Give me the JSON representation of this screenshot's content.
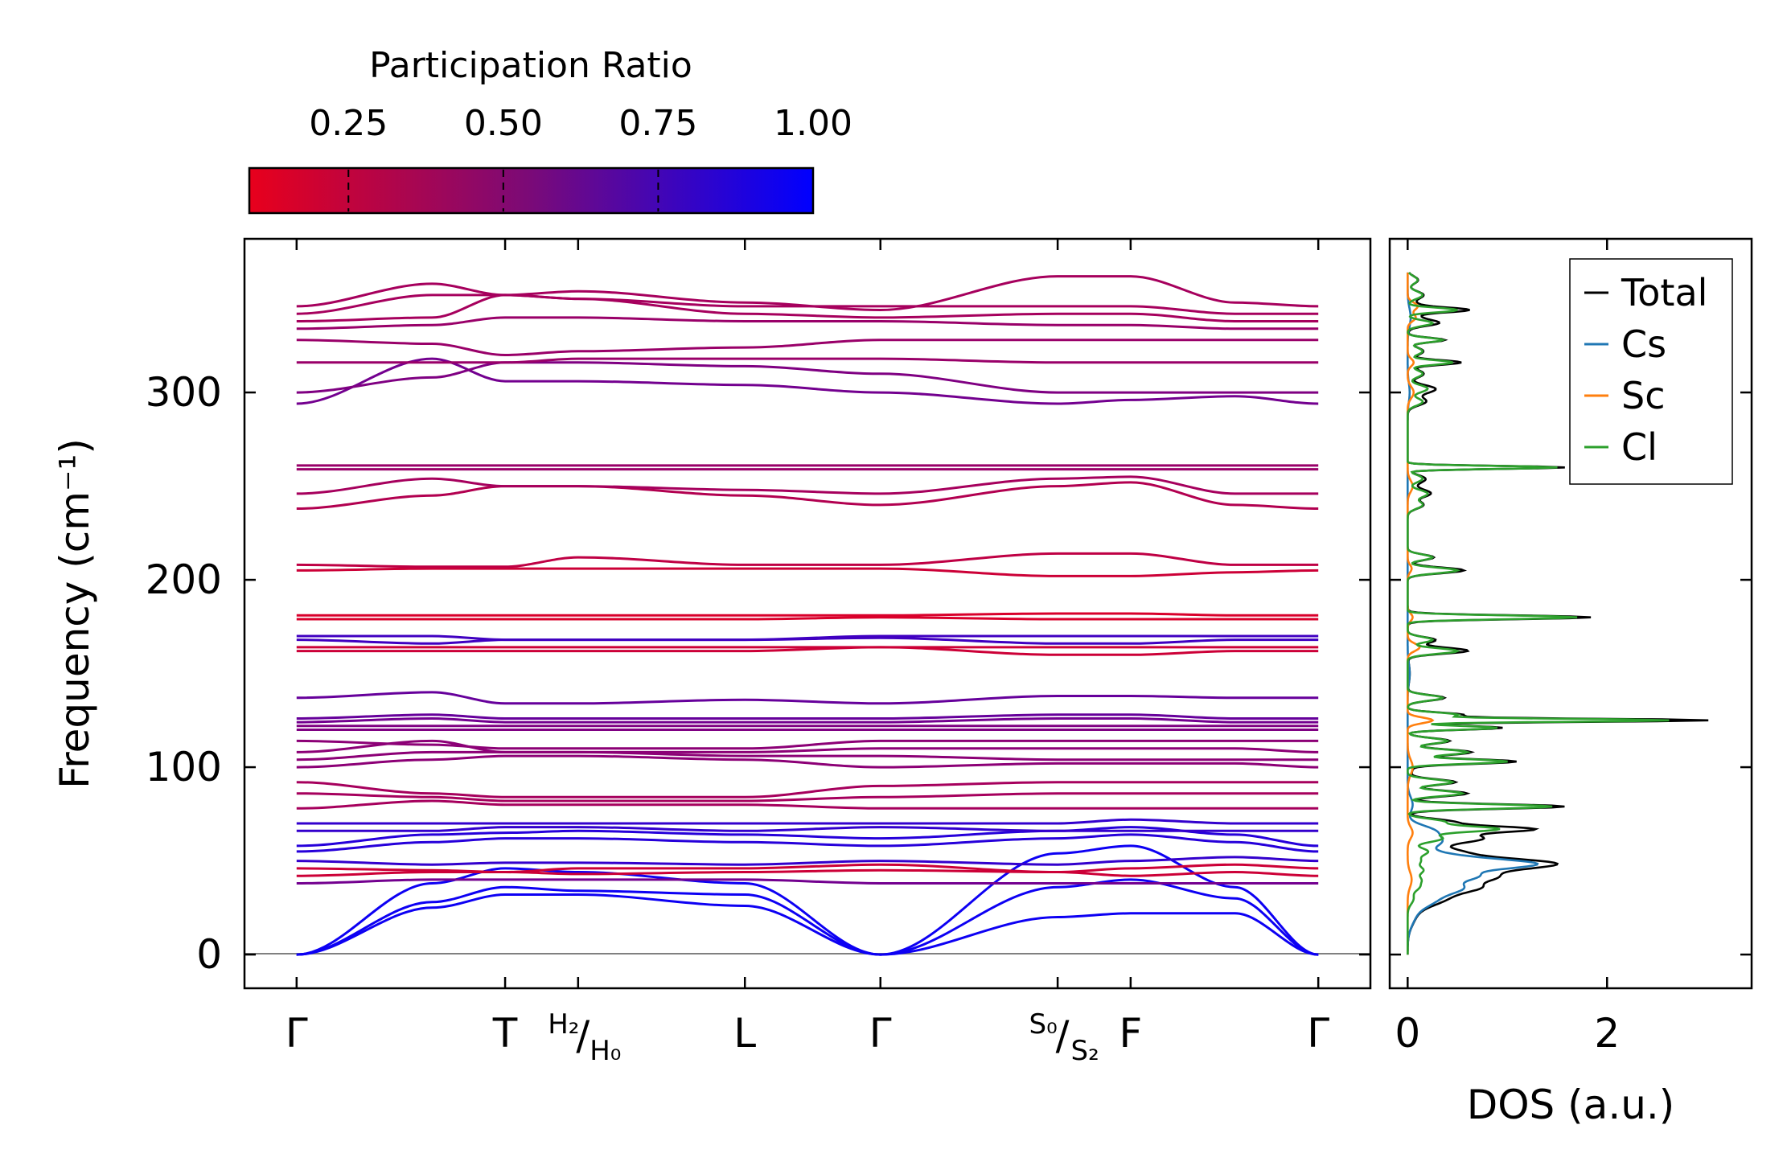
{
  "colors": {
    "red": "#e8001c",
    "blue": "#0000ff",
    "total": "#000000",
    "cs": "#1f77b4",
    "sc": "#ff7f0e",
    "cl": "#2ca02c",
    "zero_line": "#808080"
  },
  "colorbar": {
    "title": "Participation Ratio",
    "range": [
      0.09,
      1.0
    ],
    "ticks": [
      0.25,
      0.5,
      0.75,
      1.0
    ],
    "tick_labels": [
      "0.25",
      "0.50",
      "0.75",
      "1.00"
    ]
  },
  "chart_data": [
    {
      "type": "line",
      "name": "phonon-band-structure",
      "title": "",
      "xlabel": "",
      "ylabel": "Frequency (cm⁻¹)",
      "ylim": [
        -18,
        382
      ],
      "yticks": [
        0,
        100,
        200,
        300
      ],
      "ytick_labels": [
        "0",
        "100",
        "200",
        "300"
      ],
      "path_ticks": [
        0,
        1,
        1.35,
        2.15,
        2.8,
        3.65,
        4.0,
        4.9
      ],
      "xlim": [
        -0.25,
        5.15
      ],
      "path_labels": [
        {
          "x": 0,
          "main": "Γ",
          "sup": "",
          "sub": ""
        },
        {
          "x": 1,
          "main": "T",
          "sup": "",
          "sub": ""
        },
        {
          "x": 1.35,
          "main": "",
          "sup": "H₂",
          "sub": "H₀"
        },
        {
          "x": 2.15,
          "main": "L",
          "sup": "",
          "sub": ""
        },
        {
          "x": 2.8,
          "main": "Γ",
          "sup": "",
          "sub": ""
        },
        {
          "x": 3.65,
          "main": "",
          "sup": "S₀",
          "sub": "S₂"
        },
        {
          "x": 4.0,
          "main": "F",
          "sup": "",
          "sub": ""
        },
        {
          "x": 4.9,
          "main": "Γ",
          "sup": "",
          "sub": ""
        }
      ],
      "x_nodes": [
        0,
        0.65,
        1,
        1.35,
        2.15,
        2.8,
        3.65,
        4.0,
        4.5,
        4.9
      ],
      "bands": [
        {
          "pr": 0.95,
          "y": [
            0,
            25,
            32,
            32,
            26,
            0,
            20,
            22,
            22,
            0
          ]
        },
        {
          "pr": 0.95,
          "y": [
            0,
            28,
            36,
            34,
            32,
            0,
            36,
            40,
            30,
            0
          ]
        },
        {
          "pr": 0.95,
          "y": [
            0,
            38,
            46,
            44,
            38,
            0,
            54,
            58,
            36,
            0
          ]
        },
        {
          "pr": 0.55,
          "y": [
            38,
            40,
            40,
            40,
            40,
            38,
            38,
            38,
            38,
            38
          ]
        },
        {
          "pr": 0.2,
          "y": [
            42,
            44,
            44,
            43,
            44,
            45,
            44,
            42,
            44,
            42
          ]
        },
        {
          "pr": 0.2,
          "y": [
            46,
            45,
            44,
            46,
            46,
            48,
            44,
            46,
            48,
            46
          ]
        },
        {
          "pr": 0.8,
          "y": [
            50,
            48,
            49,
            49,
            48,
            50,
            48,
            50,
            52,
            50
          ]
        },
        {
          "pr": 0.85,
          "y": [
            55,
            60,
            62,
            62,
            60,
            58,
            62,
            64,
            60,
            55
          ]
        },
        {
          "pr": 0.85,
          "y": [
            58,
            64,
            65,
            66,
            64,
            62,
            66,
            68,
            64,
            58
          ]
        },
        {
          "pr": 0.8,
          "y": [
            66,
            66,
            68,
            68,
            66,
            68,
            66,
            66,
            66,
            66
          ]
        },
        {
          "pr": 0.8,
          "y": [
            70,
            70,
            70,
            70,
            70,
            70,
            70,
            72,
            70,
            70
          ]
        },
        {
          "pr": 0.35,
          "y": [
            78,
            82,
            80,
            80,
            80,
            78,
            78,
            78,
            78,
            78
          ]
        },
        {
          "pr": 0.35,
          "y": [
            86,
            84,
            82,
            82,
            82,
            84,
            86,
            86,
            86,
            86
          ]
        },
        {
          "pr": 0.35,
          "y": [
            92,
            86,
            84,
            84,
            84,
            90,
            92,
            92,
            92,
            92
          ]
        },
        {
          "pr": 0.45,
          "y": [
            100,
            104,
            106,
            106,
            104,
            100,
            102,
            102,
            102,
            100
          ]
        },
        {
          "pr": 0.45,
          "y": [
            104,
            108,
            108,
            108,
            106,
            106,
            104,
            104,
            104,
            104
          ]
        },
        {
          "pr": 0.45,
          "y": [
            108,
            114,
            108,
            108,
            108,
            110,
            110,
            110,
            110,
            108
          ]
        },
        {
          "pr": 0.45,
          "y": [
            114,
            112,
            110,
            110,
            110,
            114,
            114,
            114,
            114,
            114
          ]
        },
        {
          "pr": 0.5,
          "y": [
            120,
            120,
            120,
            120,
            120,
            120,
            120,
            120,
            120,
            120
          ]
        },
        {
          "pr": 0.5,
          "y": [
            122,
            122,
            122,
            122,
            122,
            122,
            122,
            122,
            122,
            122
          ]
        },
        {
          "pr": 0.55,
          "y": [
            124,
            126,
            124,
            124,
            124,
            124,
            126,
            126,
            124,
            124
          ]
        },
        {
          "pr": 0.6,
          "y": [
            126,
            128,
            126,
            126,
            126,
            126,
            128,
            128,
            126,
            126
          ]
        },
        {
          "pr": 0.6,
          "y": [
            137,
            140,
            134,
            134,
            136,
            134,
            138,
            138,
            137,
            137
          ]
        },
        {
          "pr": 0.2,
          "y": [
            162,
            162,
            162,
            162,
            162,
            164,
            160,
            160,
            162,
            162
          ]
        },
        {
          "pr": 0.2,
          "y": [
            164,
            164,
            164,
            164,
            164,
            164,
            164,
            164,
            164,
            164
          ]
        },
        {
          "pr": 0.75,
          "y": [
            168,
            166,
            168,
            168,
            168,
            169,
            166,
            166,
            168,
            168
          ]
        },
        {
          "pr": 0.75,
          "y": [
            170,
            170,
            168,
            168,
            168,
            170,
            170,
            170,
            170,
            170
          ]
        },
        {
          "pr": 0.15,
          "y": [
            179,
            179,
            179,
            179,
            179,
            180,
            179,
            179,
            179,
            179
          ]
        },
        {
          "pr": 0.15,
          "y": [
            181,
            181,
            181,
            181,
            181,
            181,
            182,
            182,
            181,
            181
          ]
        },
        {
          "pr": 0.2,
          "y": [
            205,
            206,
            206,
            206,
            206,
            206,
            202,
            202,
            204,
            205
          ]
        },
        {
          "pr": 0.25,
          "y": [
            208,
            207,
            207,
            212,
            208,
            208,
            214,
            214,
            208,
            208
          ]
        },
        {
          "pr": 0.3,
          "y": [
            238,
            245,
            250,
            250,
            245,
            240,
            250,
            252,
            240,
            238
          ]
        },
        {
          "pr": 0.35,
          "y": [
            246,
            254,
            250,
            250,
            248,
            246,
            254,
            255,
            246,
            246
          ]
        },
        {
          "pr": 0.4,
          "y": [
            259,
            259,
            259,
            259,
            259,
            259,
            259,
            259,
            259,
            259
          ]
        },
        {
          "pr": 0.4,
          "y": [
            261,
            261,
            261,
            261,
            261,
            261,
            261,
            261,
            261,
            261
          ]
        },
        {
          "pr": 0.55,
          "y": [
            294,
            318,
            306,
            306,
            304,
            300,
            294,
            296,
            298,
            294
          ]
        },
        {
          "pr": 0.5,
          "y": [
            300,
            308,
            316,
            316,
            314,
            310,
            300,
            300,
            300,
            300
          ]
        },
        {
          "pr": 0.4,
          "y": [
            316,
            316,
            316,
            318,
            318,
            318,
            316,
            316,
            316,
            316
          ]
        },
        {
          "pr": 0.4,
          "y": [
            328,
            326,
            320,
            322,
            324,
            328,
            328,
            328,
            328,
            328
          ]
        },
        {
          "pr": 0.4,
          "y": [
            334,
            336,
            340,
            340,
            338,
            338,
            336,
            336,
            334,
            334
          ]
        },
        {
          "pr": 0.35,
          "y": [
            338,
            340,
            352,
            350,
            342,
            340,
            342,
            342,
            338,
            338
          ]
        },
        {
          "pr": 0.35,
          "y": [
            342,
            352,
            352,
            350,
            346,
            346,
            346,
            346,
            342,
            342
          ]
        },
        {
          "pr": 0.35,
          "y": [
            346,
            358,
            352,
            354,
            348,
            344,
            362,
            362,
            348,
            346
          ]
        }
      ]
    },
    {
      "type": "line",
      "name": "density-of-states",
      "title": "",
      "xlabel": "DOS (a.u.)",
      "ylabel": "",
      "xlim": [
        -0.18,
        3.45
      ],
      "ylim": [
        -18,
        382
      ],
      "xticks": [
        0,
        2
      ],
      "xtick_labels": [
        "0",
        "2"
      ],
      "legend": {
        "position": "top-right",
        "entries": [
          "Total",
          "Cs",
          "Sc",
          "Cl"
        ]
      },
      "series": [
        {
          "name": "Cs",
          "color_key": "cs",
          "peaks": [
            [
              22,
              0.08,
              6
            ],
            [
              30,
              0.25,
              4
            ],
            [
              36,
              0.45,
              3
            ],
            [
              42,
              0.6,
              2.5
            ],
            [
              48,
              1.1,
              2.5
            ],
            [
              52,
              0.4,
              3
            ],
            [
              60,
              0.3,
              3
            ],
            [
              66,
              0.25,
              3
            ],
            [
              80,
              0.05,
              4
            ],
            [
              150,
              0.02,
              5
            ],
            [
              300,
              0.02,
              5
            ],
            [
              340,
              0.03,
              5
            ]
          ]
        },
        {
          "name": "Sc",
          "color_key": "sc",
          "peaks": [
            [
              40,
              0.04,
              4
            ],
            [
              65,
              0.05,
              3
            ],
            [
              100,
              0.05,
              4
            ],
            [
              125,
              0.25,
              1.5
            ],
            [
              164,
              0.12,
              2
            ],
            [
              180,
              0.05,
              2
            ],
            [
              206,
              0.04,
              2
            ],
            [
              250,
              0.05,
              3
            ],
            [
              300,
              0.06,
              3
            ],
            [
              316,
              0.06,
              2
            ],
            [
              340,
              0.08,
              2
            ],
            [
              346,
              0.1,
              2
            ]
          ]
        },
        {
          "name": "Cl",
          "color_key": "cl",
          "peaks": [
            [
              30,
              0.06,
              3
            ],
            [
              36,
              0.1,
              2
            ],
            [
              40,
              0.12,
              2
            ],
            [
              45,
              0.15,
              2
            ],
            [
              50,
              0.12,
              2
            ],
            [
              55,
              0.2,
              2
            ],
            [
              62,
              0.35,
              2
            ],
            [
              67,
              0.9,
              1.5
            ],
            [
              71,
              0.35,
              1.5
            ],
            [
              79,
              1.45,
              1.2
            ],
            [
              86,
              0.55,
              1.5
            ],
            [
              92,
              0.45,
              1.5
            ],
            [
              103,
              1.0,
              1.2
            ],
            [
              108,
              0.6,
              1.5
            ],
            [
              114,
              0.4,
              1.5
            ],
            [
              121,
              0.9,
              1.0
            ],
            [
              125,
              2.6,
              0.8
            ],
            [
              128,
              0.5,
              1.2
            ],
            [
              137,
              0.35,
              1.5
            ],
            [
              162,
              0.5,
              1.5
            ],
            [
              168,
              0.25,
              1.5
            ],
            [
              180,
              1.7,
              1.0
            ],
            [
              205,
              0.5,
              1.5
            ],
            [
              212,
              0.25,
              1.5
            ],
            [
              240,
              0.15,
              2
            ],
            [
              246,
              0.2,
              2
            ],
            [
              254,
              0.15,
              2
            ],
            [
              260,
              1.5,
              0.8
            ],
            [
              295,
              0.15,
              2
            ],
            [
              302,
              0.2,
              2
            ],
            [
              310,
              0.15,
              2
            ],
            [
              316,
              0.45,
              1.2
            ],
            [
              322,
              0.15,
              2
            ],
            [
              328,
              0.35,
              1.2
            ],
            [
              337,
              0.25,
              1.5
            ],
            [
              344,
              0.5,
              1.2
            ],
            [
              352,
              0.15,
              2
            ],
            [
              360,
              0.1,
              2
            ]
          ]
        },
        {
          "name": "Total",
          "color_key": "total",
          "peaks": []
        }
      ]
    }
  ]
}
